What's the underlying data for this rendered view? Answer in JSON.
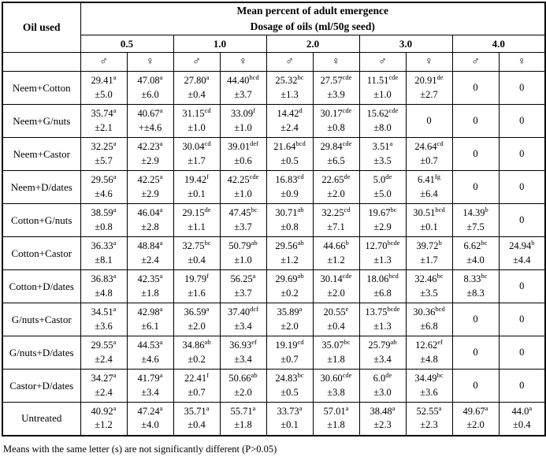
{
  "table": {
    "corner_label": "Oil used",
    "title_line1": "Mean percent of adult emergence",
    "title_line2": "Dosage of oils (ml/50g seed)",
    "dosages": [
      "0.5",
      "1.0",
      "2.0",
      "3.0",
      "4.0"
    ],
    "male_symbol": "♂",
    "female_symbol": "♀",
    "rows": [
      {
        "oil": "Neem+Cotton",
        "cells": [
          [
            "29.41",
            "a",
            "±5.0"
          ],
          [
            "47.08",
            "a",
            "±6.0"
          ],
          [
            "27.80",
            "a",
            "±0.4"
          ],
          [
            "44.40",
            "bcd",
            "±3.7"
          ],
          [
            "25.32",
            "bc",
            "±1.3"
          ],
          [
            "27.57",
            "cde",
            "±3.9"
          ],
          [
            "11.51",
            "cde",
            "±1.0"
          ],
          [
            "20.91",
            "de",
            "±2.7"
          ],
          [
            "0",
            "",
            ""
          ],
          [
            "0",
            "",
            ""
          ]
        ]
      },
      {
        "oil": "Neem+G/nuts",
        "cells": [
          [
            "35.74",
            "a",
            "±2.1"
          ],
          [
            "40.67",
            "a",
            "+±4.6"
          ],
          [
            "31.15",
            "cd",
            "±1.0"
          ],
          [
            "33.09",
            "f",
            "±1.0"
          ],
          [
            "14.42",
            "d",
            "±2.4"
          ],
          [
            "30.17",
            "cde",
            "±0.8"
          ],
          [
            "15.62",
            "cde",
            "±8.0"
          ],
          [
            "0",
            "",
            ""
          ],
          [
            "0",
            "",
            ""
          ],
          [
            "0",
            "",
            ""
          ]
        ]
      },
      {
        "oil": "Neem+Castor",
        "cells": [
          [
            "32.25",
            "a",
            "±5.7"
          ],
          [
            "42.23",
            "a",
            "±2.9"
          ],
          [
            "30.04",
            "cd",
            "±1.7"
          ],
          [
            "39.01",
            "def",
            "±0.6"
          ],
          [
            "21.64",
            "bcd",
            "±0.5"
          ],
          [
            "29.84",
            "cde",
            "±6.5"
          ],
          [
            "3.51",
            "a",
            "±3.5"
          ],
          [
            "24.64",
            "cd",
            "±0.7"
          ],
          [
            "0",
            "",
            ""
          ],
          [
            "0",
            "",
            ""
          ]
        ]
      },
      {
        "oil": "Neem+D/dates",
        "cells": [
          [
            "29.56",
            "a",
            "±4.6"
          ],
          [
            "42.25",
            "a",
            "±2.9"
          ],
          [
            "19.42",
            "f",
            "±0.1"
          ],
          [
            "42.25",
            "cde",
            "±1.0"
          ],
          [
            "16.83",
            "cd",
            "±0.9"
          ],
          [
            "22.65",
            "de",
            "±2.0"
          ],
          [
            "5.0",
            "de",
            "±5.0"
          ],
          [
            "6.41",
            "fg",
            "±6.4"
          ],
          [
            "0",
            "",
            ""
          ],
          [
            "0",
            "",
            ""
          ]
        ]
      },
      {
        "oil": "Cotton+G/nuts",
        "cells": [
          [
            "38.59",
            "a",
            "±0.8"
          ],
          [
            "46.04",
            "a",
            "±2.8"
          ],
          [
            "29.15",
            "de",
            "±1.1"
          ],
          [
            "47.45",
            "bc",
            "±3.7"
          ],
          [
            "30.71",
            "ab",
            "±0.8"
          ],
          [
            "32.25",
            "cd",
            "±7.1"
          ],
          [
            "19.67",
            "bc",
            "±2.9"
          ],
          [
            "30.51",
            "bcd",
            "±0.1"
          ],
          [
            "14.39",
            "b",
            "±7.5"
          ],
          [
            "0",
            "",
            ""
          ]
        ]
      },
      {
        "oil": "Cotton+Castor",
        "cells": [
          [
            "36.33",
            "a",
            "±8.1"
          ],
          [
            "48.84",
            "a",
            "±2.4"
          ],
          [
            "32.75",
            "bc",
            "±0.4"
          ],
          [
            "50.79",
            "ab",
            "±1.0"
          ],
          [
            "29.56",
            "ab",
            "±1.2"
          ],
          [
            "44.66",
            "b",
            "±1.2"
          ],
          [
            "12.70",
            "bcde",
            "±1.3"
          ],
          [
            "39.72",
            "b",
            "±1.7"
          ],
          [
            "6.62",
            "bc",
            "±4.0"
          ],
          [
            "24.94",
            "b",
            "±4.4"
          ]
        ]
      },
      {
        "oil": "Cotton+D/dates",
        "cells": [
          [
            "36.83",
            "a",
            "±4.8"
          ],
          [
            "42.35",
            "a",
            "±1.8"
          ],
          [
            "19.79",
            "f",
            "±1.6"
          ],
          [
            "56.25",
            "a",
            "±3.7"
          ],
          [
            "29.69",
            "ab",
            "±0.2"
          ],
          [
            "30.14",
            "cde",
            "±2.0"
          ],
          [
            "18.06",
            "bcd",
            "±6.8"
          ],
          [
            "32.46",
            "bc",
            "±3.5"
          ],
          [
            "8.33",
            "bc",
            "±8.3"
          ],
          [
            "0",
            "",
            ""
          ]
        ]
      },
      {
        "oil": "G/nuts+Castor",
        "cells": [
          [
            "34.51",
            "a",
            "±3.6"
          ],
          [
            "42.98",
            "a",
            "±6.1"
          ],
          [
            "36.59",
            "a",
            "±2.0"
          ],
          [
            "37.40",
            "dcf",
            "±3.4"
          ],
          [
            "35.89",
            "a",
            "±2.0"
          ],
          [
            "20.55",
            "e",
            "±0.4"
          ],
          [
            "13.75",
            "bcde",
            "±1.3"
          ],
          [
            "30.36",
            "bcd",
            "±6.8"
          ],
          [
            "0",
            "",
            ""
          ],
          [
            "0",
            "",
            ""
          ]
        ]
      },
      {
        "oil": "G/nuts+D/dates",
        "cells": [
          [
            "29.55",
            "a",
            "±2.4"
          ],
          [
            "44.53",
            "a",
            "±4.6"
          ],
          [
            "34.86",
            "ab",
            "±0.2"
          ],
          [
            "36.93",
            "ef",
            "±3.4"
          ],
          [
            "19.19",
            "cd",
            "±0.7"
          ],
          [
            "35.07",
            "bc",
            "±1.8"
          ],
          [
            "25.79",
            "ab",
            "±3.4"
          ],
          [
            "12.62",
            "ef",
            "±4.8"
          ],
          [
            "0",
            "",
            ""
          ],
          [
            "0",
            "",
            ""
          ]
        ]
      },
      {
        "oil": "Castor+D/dates",
        "cells": [
          [
            "34.27",
            "a",
            "±2.4"
          ],
          [
            "41.79",
            "a",
            "±3.4"
          ],
          [
            "22.41",
            "f",
            "±0.7"
          ],
          [
            "50.66",
            "ab",
            "±2.0"
          ],
          [
            "24.83",
            "bc",
            "±0.5"
          ],
          [
            "30.60",
            "cde",
            "±3.8"
          ],
          [
            "6.0",
            "de",
            "±3.0"
          ],
          [
            "34.49",
            "bc",
            "±3.6"
          ],
          [
            "0",
            "",
            ""
          ],
          [
            "0",
            "",
            ""
          ]
        ]
      },
      {
        "oil": "Untreated",
        "cells": [
          [
            "40.92",
            "a",
            "±1.2"
          ],
          [
            "47.24",
            "a",
            "±4.0"
          ],
          [
            "35.71",
            "a",
            "±0.4"
          ],
          [
            "55.71",
            "a",
            "±1.8"
          ],
          [
            "33.73",
            "a",
            "±0.1"
          ],
          [
            "57.01",
            "a",
            "±1.8"
          ],
          [
            "38.48",
            "a",
            "±2.3"
          ],
          [
            "52.55",
            "a",
            "±2.3"
          ],
          [
            "49.67",
            "a",
            "±2.0"
          ],
          [
            "44.0",
            "a",
            "±0.4"
          ]
        ]
      }
    ]
  },
  "footnote": "Means with the same letter (s) are not significantly different (P>0.05)"
}
